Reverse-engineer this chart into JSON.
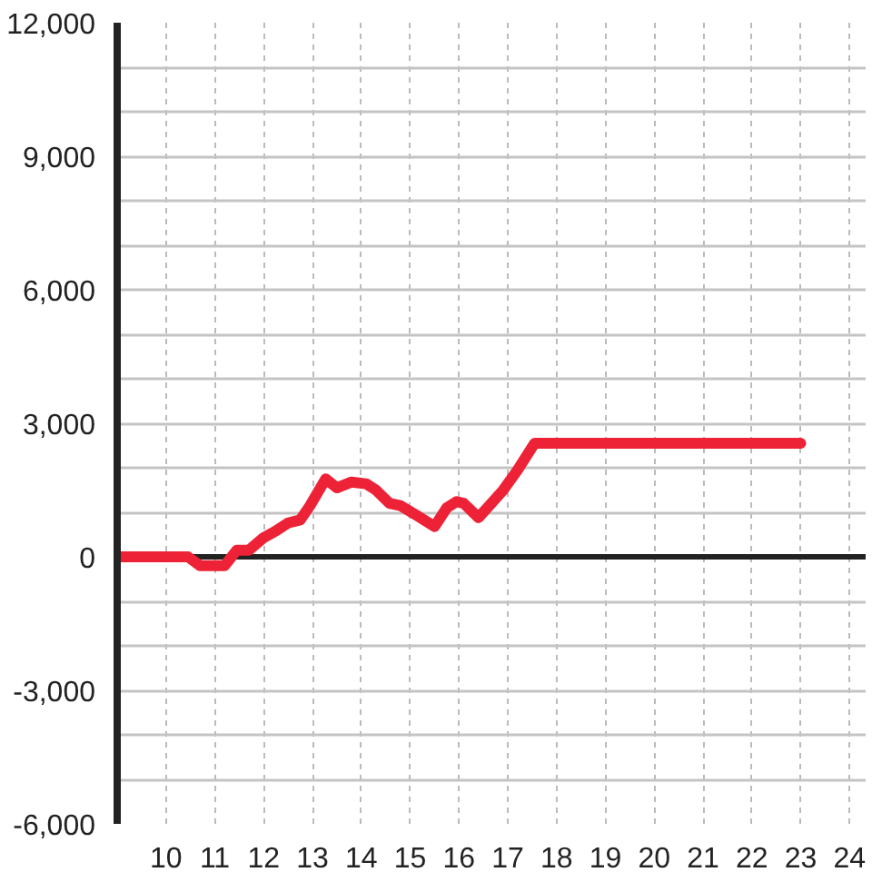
{
  "chart_data": {
    "type": "line",
    "x": [
      9.0,
      10.45,
      10.7,
      11.2,
      11.45,
      11.7,
      12.0,
      12.25,
      12.5,
      12.75,
      12.95,
      13.27,
      13.5,
      13.8,
      14.1,
      14.3,
      14.58,
      14.8,
      15.15,
      15.5,
      15.75,
      15.95,
      16.1,
      16.4,
      16.9,
      17.2,
      17.55,
      23.0
    ],
    "series": [
      {
        "color": "#ee2236",
        "values": [
          0,
          0,
          -200,
          -200,
          150,
          150,
          430,
          580,
          760,
          830,
          1150,
          1750,
          1550,
          1680,
          1640,
          1500,
          1200,
          1150,
          920,
          680,
          1100,
          1240,
          1200,
          880,
          1490,
          1950,
          2550,
          2550
        ]
      }
    ],
    "xlim": [
      9,
      24.33
    ],
    "xticks": [
      10,
      11,
      12,
      13,
      14,
      15,
      16,
      17,
      18,
      19,
      20,
      21,
      22,
      23,
      24
    ],
    "ylim": [
      -6000,
      12000
    ],
    "yticks": [
      {
        "value": -6000,
        "label": "-6,000"
      },
      {
        "value": -5000,
        "label": null
      },
      {
        "value": -4000,
        "label": null
      },
      {
        "value": -3000,
        "label": "-3,000"
      },
      {
        "value": -2000,
        "label": null
      },
      {
        "value": -1000,
        "label": null
      },
      0,
      {
        "value": 1000,
        "label": null
      },
      {
        "value": 2000,
        "label": null
      },
      {
        "value": 3000,
        "label": "3,000"
      },
      {
        "value": 4000,
        "label": null
      },
      {
        "value": 5000,
        "label": null
      },
      {
        "value": 6000,
        "label": "6,000"
      },
      {
        "value": 7000,
        "label": null
      },
      {
        "value": 8000,
        "label": null
      },
      {
        "value": 9000,
        "label": "9,000"
      },
      {
        "value": 10000,
        "label": null
      },
      {
        "value": 11000,
        "label": null
      },
      {
        "value": 12000,
        "label": "12,000"
      }
    ],
    "grid": true,
    "ref_lines": [
      {
        "axis": "y",
        "value": 0,
        "color": "#222222"
      }
    ]
  }
}
